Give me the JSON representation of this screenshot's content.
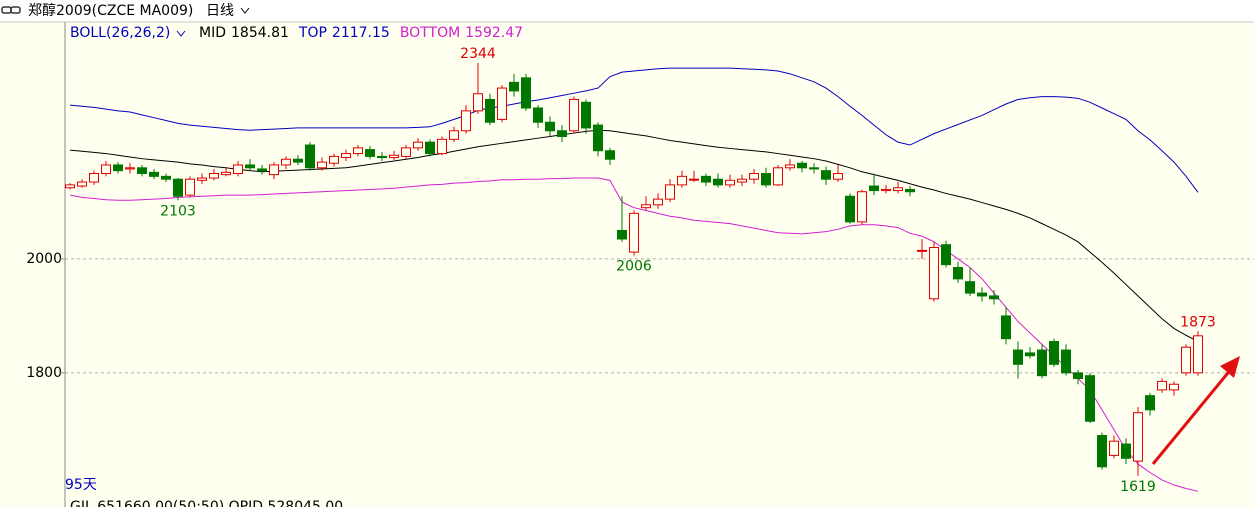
{
  "chart_data": {
    "type": "candlestick",
    "title": "郑醇2009(CZCE MA009)",
    "period": "日线",
    "indicator": "BOLL(26,26,2)",
    "bar_count_label": "95天",
    "footer": "GJL    651660.00(50:50)  OPID 528045.00",
    "ylim": [
      1582,
      2416
    ],
    "yticks": [
      1800,
      2000
    ],
    "grid": true,
    "up_color": "#e00000",
    "down_color": "#007800",
    "ohlc": [
      [
        2125,
        2133,
        2122,
        2130
      ],
      [
        2128,
        2140,
        2125,
        2135
      ],
      [
        2135,
        2155,
        2130,
        2150
      ],
      [
        2150,
        2172,
        2145,
        2165
      ],
      [
        2165,
        2170,
        2150,
        2155
      ],
      [
        2158,
        2168,
        2150,
        2160
      ],
      [
        2160,
        2165,
        2145,
        2150
      ],
      [
        2152,
        2158,
        2140,
        2145
      ],
      [
        2145,
        2150,
        2135,
        2140
      ],
      [
        2140,
        2142,
        2103,
        2110
      ],
      [
        2112,
        2145,
        2108,
        2140
      ],
      [
        2138,
        2150,
        2132,
        2142
      ],
      [
        2142,
        2158,
        2138,
        2150
      ],
      [
        2148,
        2160,
        2145,
        2152
      ],
      [
        2150,
        2172,
        2145,
        2165
      ],
      [
        2165,
        2175,
        2155,
        2160
      ],
      [
        2158,
        2165,
        2148,
        2155
      ],
      [
        2148,
        2170,
        2140,
        2165
      ],
      [
        2165,
        2180,
        2158,
        2175
      ],
      [
        2175,
        2182,
        2165,
        2170
      ],
      [
        2200,
        2205,
        2155,
        2160
      ],
      [
        2160,
        2178,
        2155,
        2170
      ],
      [
        2168,
        2185,
        2162,
        2180
      ],
      [
        2178,
        2192,
        2172,
        2185
      ],
      [
        2185,
        2200,
        2180,
        2195
      ],
      [
        2192,
        2198,
        2175,
        2180
      ],
      [
        2180,
        2188,
        2172,
        2178
      ],
      [
        2178,
        2190,
        2174,
        2182
      ],
      [
        2180,
        2200,
        2176,
        2195
      ],
      [
        2195,
        2212,
        2190,
        2205
      ],
      [
        2205,
        2210,
        2180,
        2185
      ],
      [
        2185,
        2215,
        2182,
        2210
      ],
      [
        2210,
        2232,
        2205,
        2225
      ],
      [
        2225,
        2270,
        2220,
        2260
      ],
      [
        2260,
        2344,
        2255,
        2290
      ],
      [
        2280,
        2290,
        2235,
        2240
      ],
      [
        2245,
        2305,
        2240,
        2300
      ],
      [
        2310,
        2325,
        2285,
        2295
      ],
      [
        2318,
        2325,
        2260,
        2265
      ],
      [
        2265,
        2270,
        2230,
        2240
      ],
      [
        2240,
        2250,
        2215,
        2225
      ],
      [
        2225,
        2235,
        2205,
        2215
      ],
      [
        2225,
        2285,
        2220,
        2280
      ],
      [
        2275,
        2280,
        2220,
        2230
      ],
      [
        2235,
        2240,
        2180,
        2190
      ],
      [
        2190,
        2195,
        2165,
        2175
      ],
      [
        2050,
        2110,
        2030,
        2035
      ],
      [
        2012,
        2085,
        2006,
        2080
      ],
      [
        2090,
        2110,
        2085,
        2095
      ],
      [
        2095,
        2115,
        2088,
        2105
      ],
      [
        2105,
        2140,
        2100,
        2130
      ],
      [
        2130,
        2155,
        2125,
        2145
      ],
      [
        2140,
        2155,
        2135,
        2140
      ],
      [
        2145,
        2150,
        2128,
        2135
      ],
      [
        2140,
        2150,
        2125,
        2130
      ],
      [
        2130,
        2148,
        2125,
        2138
      ],
      [
        2135,
        2148,
        2128,
        2140
      ],
      [
        2140,
        2158,
        2132,
        2150
      ],
      [
        2150,
        2160,
        2125,
        2130
      ],
      [
        2130,
        2165,
        2128,
        2160
      ],
      [
        2160,
        2175,
        2155,
        2165
      ],
      [
        2168,
        2172,
        2152,
        2160
      ],
      [
        2160,
        2168,
        2150,
        2158
      ],
      [
        2155,
        2162,
        2130,
        2140
      ],
      [
        2140,
        2165,
        2135,
        2150
      ],
      [
        2110,
        2115,
        2062,
        2065
      ],
      [
        2065,
        2122,
        2060,
        2118
      ],
      [
        2128,
        2150,
        2112,
        2120
      ],
      [
        2120,
        2130,
        2115,
        2122
      ],
      [
        2120,
        2135,
        2115,
        2125
      ],
      [
        2122,
        2128,
        2110,
        2118
      ],
      [
        2015,
        2035,
        2000,
        2015
      ],
      [
        1930,
        2030,
        1925,
        2020
      ],
      [
        2025,
        2032,
        1985,
        1990
      ],
      [
        1985,
        1995,
        1958,
        1965
      ],
      [
        1960,
        1985,
        1935,
        1940
      ],
      [
        1940,
        1950,
        1925,
        1935
      ],
      [
        1935,
        1945,
        1920,
        1930
      ],
      [
        1900,
        1915,
        1850,
        1860
      ],
      [
        1840,
        1855,
        1790,
        1815
      ],
      [
        1835,
        1845,
        1825,
        1830
      ],
      [
        1840,
        1850,
        1790,
        1795
      ],
      [
        1855,
        1860,
        1810,
        1815
      ],
      [
        1840,
        1850,
        1795,
        1800
      ],
      [
        1800,
        1805,
        1780,
        1790
      ],
      [
        1795,
        1800,
        1712,
        1715
      ],
      [
        1690,
        1695,
        1630,
        1635
      ],
      [
        1655,
        1690,
        1650,
        1680
      ],
      [
        1675,
        1685,
        1640,
        1650
      ],
      [
        1645,
        1740,
        1619,
        1730
      ],
      [
        1760,
        1765,
        1725,
        1735
      ],
      [
        1770,
        1790,
        1765,
        1785
      ],
      [
        1770,
        1785,
        1760,
        1780
      ],
      [
        1800,
        1850,
        1795,
        1845
      ],
      [
        1800,
        1873,
        1795,
        1865
      ]
    ],
    "annotations": [
      2344,
      2103,
      2006,
      1619,
      1873
    ],
    "series": [
      {
        "name": "MID",
        "color": "#000000",
        "last": 1854.81,
        "values": [
          2191,
          2189,
          2187,
          2185,
          2182,
          2179,
          2176,
          2174,
          2172,
          2170,
          2167,
          2165,
          2162,
          2160,
          2157,
          2155,
          2153,
          2154,
          2155,
          2156,
          2157,
          2158,
          2159,
          2160,
          2163,
          2166,
          2169,
          2172,
          2175,
          2178,
          2182,
          2185,
          2189,
          2193,
          2197,
          2200,
          2203,
          2206,
          2209,
          2212,
          2215,
          2218,
          2221,
          2224,
          2226,
          2225,
          2222,
          2219,
          2216,
          2212,
          2208,
          2205,
          2202,
          2199,
          2196,
          2194,
          2192,
          2190,
          2188,
          2185,
          2182,
          2179,
          2176,
          2172,
          2166,
          2160,
          2153,
          2148,
          2143,
          2138,
          2132,
          2126,
          2121,
          2115,
          2110,
          2105,
          2099,
          2093,
          2087,
          2080,
          2072,
          2062,
          2052,
          2042,
          2030,
          2012,
          1994,
          1975,
          1955,
          1935,
          1915,
          1895,
          1878,
          1866,
          1855
        ]
      },
      {
        "name": "TOP",
        "color": "#0000c0",
        "last": 2117.15,
        "values": [
          2270,
          2268,
          2266,
          2263,
          2260,
          2258,
          2253,
          2248,
          2243,
          2238,
          2235,
          2233,
          2231,
          2229,
          2227,
          2226,
          2227,
          2228,
          2229,
          2230,
          2230,
          2230,
          2230,
          2230,
          2230,
          2230,
          2230,
          2230,
          2230,
          2231,
          2232,
          2238,
          2245,
          2252,
          2261,
          2265,
          2268,
          2272,
          2276,
          2279,
          2283,
          2287,
          2291,
          2295,
          2300,
          2320,
          2328,
          2330,
          2332,
          2334,
          2335,
          2335,
          2335,
          2335,
          2335,
          2335,
          2334,
          2333,
          2332,
          2330,
          2325,
          2318,
          2311,
          2300,
          2285,
          2268,
          2252,
          2235,
          2218,
          2205,
          2200,
          2210,
          2220,
          2228,
          2236,
          2244,
          2252,
          2262,
          2272,
          2280,
          2283,
          2285,
          2285,
          2284,
          2282,
          2275,
          2265,
          2255,
          2245,
          2225,
          2209,
          2190,
          2170,
          2145,
          2117
        ]
      },
      {
        "name": "BOTTOM",
        "color": "#d020d0",
        "last": 1592.47,
        "values": [
          2112,
          2108,
          2106,
          2104,
          2103,
          2103,
          2104,
          2105,
          2106,
          2108,
          2109,
          2110,
          2111,
          2112,
          2112,
          2112,
          2113,
          2114,
          2115,
          2116,
          2117,
          2118,
          2119,
          2120,
          2121,
          2122,
          2123,
          2124,
          2126,
          2128,
          2130,
          2131,
          2133,
          2134,
          2136,
          2137,
          2139,
          2139,
          2140,
          2140,
          2141,
          2141,
          2142,
          2142,
          2142,
          2138,
          2100,
          2090,
          2085,
          2080,
          2075,
          2072,
          2068,
          2066,
          2064,
          2062,
          2058,
          2054,
          2050,
          2046,
          2045,
          2044,
          2046,
          2048,
          2052,
          2058,
          2060,
          2060,
          2058,
          2055,
          2045,
          2040,
          2030,
          2015,
          2000,
          1985,
          1965,
          1940,
          1915,
          1890,
          1870,
          1850,
          1830,
          1810,
          1790,
          1770,
          1735,
          1700,
          1665,
          1640,
          1625,
          1612,
          1603,
          1597,
          1592
        ]
      }
    ]
  }
}
